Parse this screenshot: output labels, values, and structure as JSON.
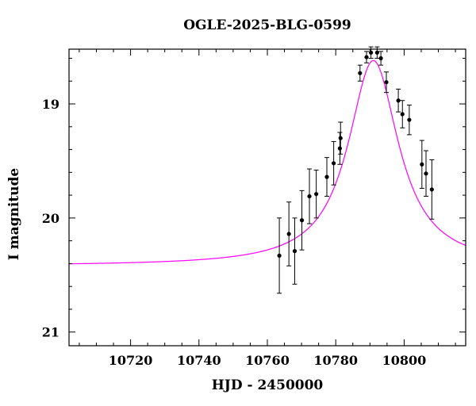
{
  "chart_data": {
    "type": "scatter",
    "title": "OGLE-2025-BLG-0599",
    "xlabel": "HJD - 2450000",
    "ylabel": "I magnitude",
    "xlim": [
      10702,
      10818
    ],
    "ylim": [
      21.12,
      18.52
    ],
    "y_inverted": true,
    "x_ticks_major": [
      10720,
      10740,
      10760,
      10780,
      10800
    ],
    "x_ticks_minor_step": 5,
    "y_ticks_major": [
      19,
      20,
      21
    ],
    "y_ticks_minor_step": 0.2,
    "grid": false,
    "colors": {
      "model": "#ff00ff",
      "points": "#000000",
      "axes": "#000000"
    },
    "model": {
      "name": "",
      "baseline": 20.42,
      "peak_mag": 18.62,
      "t0": 10791.0,
      "width": 9.0
    },
    "series": [
      {
        "name": "",
        "points": [
          {
            "x": 10763.5,
            "y": 20.33,
            "err": 0.33
          },
          {
            "x": 10766.3,
            "y": 20.14,
            "err": 0.28
          },
          {
            "x": 10768.0,
            "y": 20.29,
            "err": 0.29
          },
          {
            "x": 10770.1,
            "y": 20.02,
            "err": 0.26
          },
          {
            "x": 10772.3,
            "y": 19.81,
            "err": 0.24
          },
          {
            "x": 10774.3,
            "y": 19.79,
            "err": 0.21
          },
          {
            "x": 10777.4,
            "y": 19.64,
            "err": 0.17
          },
          {
            "x": 10779.4,
            "y": 19.52,
            "err": 0.19
          },
          {
            "x": 10781.2,
            "y": 19.39,
            "err": 0.14
          },
          {
            "x": 10781.4,
            "y": 19.3,
            "err": 0.14
          },
          {
            "x": 10787.1,
            "y": 18.73,
            "err": 0.07
          },
          {
            "x": 10789.0,
            "y": 18.59,
            "err": 0.05
          },
          {
            "x": 10790.3,
            "y": 18.55,
            "err": 0.05
          },
          {
            "x": 10792.1,
            "y": 18.55,
            "err": 0.05
          },
          {
            "x": 10793.2,
            "y": 18.6,
            "err": 0.06
          },
          {
            "x": 10794.8,
            "y": 18.81,
            "err": 0.09
          },
          {
            "x": 10798.3,
            "y": 18.97,
            "err": 0.1
          },
          {
            "x": 10799.5,
            "y": 19.09,
            "err": 0.12
          },
          {
            "x": 10801.5,
            "y": 19.14,
            "err": 0.13
          },
          {
            "x": 10805.2,
            "y": 19.53,
            "err": 0.21
          },
          {
            "x": 10806.4,
            "y": 19.61,
            "err": 0.2
          },
          {
            "x": 10808.1,
            "y": 19.75,
            "err": 0.26
          }
        ]
      }
    ]
  }
}
